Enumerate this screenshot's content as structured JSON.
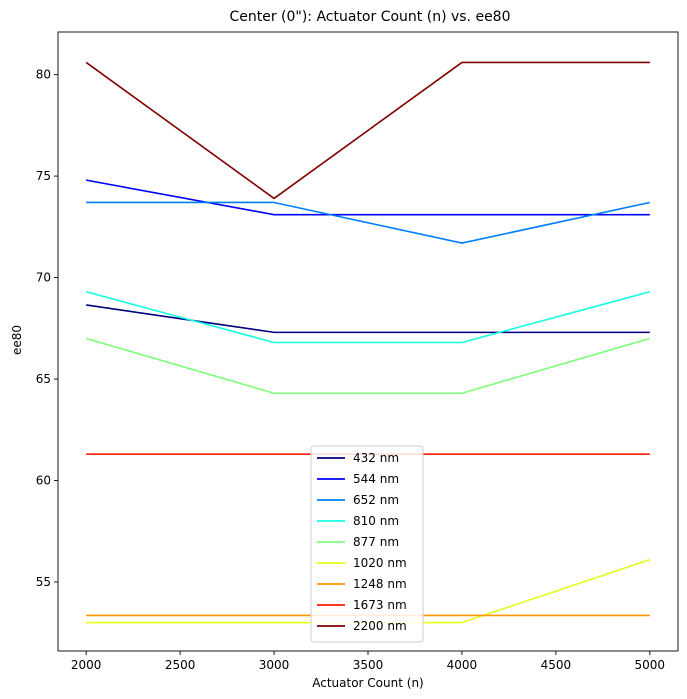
{
  "chart_data": {
    "type": "line",
    "title": "Center (0\"): Actuator Count (n) vs. ee80",
    "xlabel": "Actuator Count (n)",
    "ylabel": "ee80",
    "x": [
      2000,
      3000,
      4000,
      5000
    ],
    "xlim": [
      1850,
      5150
    ],
    "ylim": [
      51.6,
      82.1
    ],
    "xticks": [
      2000,
      2500,
      3000,
      3500,
      4000,
      4500,
      5000
    ],
    "yticks": [
      55,
      60,
      65,
      70,
      75,
      80
    ],
    "grid": false,
    "legend_position": "lower-center",
    "series": [
      {
        "name": "432 nm",
        "color": "#00007f",
        "values": [
          68.65,
          67.3,
          67.3,
          67.3
        ]
      },
      {
        "name": "544 nm",
        "color": "#0000ff",
        "values": [
          74.8,
          73.1,
          73.1,
          73.1
        ]
      },
      {
        "name": "652 nm",
        "color": "#0080ff",
        "values": [
          73.7,
          73.7,
          71.7,
          73.7
        ]
      },
      {
        "name": "810 nm",
        "color": "#15ffe1",
        "values": [
          69.3,
          66.8,
          66.8,
          69.3
        ]
      },
      {
        "name": "877 nm",
        "color": "#7dff7a",
        "values": [
          67.0,
          64.3,
          64.3,
          67.0
        ]
      },
      {
        "name": "1020 nm",
        "color": "#e4ff13",
        "values": [
          53.0,
          53.0,
          53.0,
          56.1
        ]
      },
      {
        "name": "1248 nm",
        "color": "#ff9400",
        "values": [
          53.35,
          53.35,
          53.35,
          53.35
        ]
      },
      {
        "name": "1673 nm",
        "color": "#ff1e00",
        "values": [
          61.3,
          61.3,
          61.3,
          61.3
        ]
      },
      {
        "name": "2200 nm",
        "color": "#7f0000",
        "values": [
          80.6,
          73.9,
          80.6,
          80.6
        ]
      }
    ]
  }
}
